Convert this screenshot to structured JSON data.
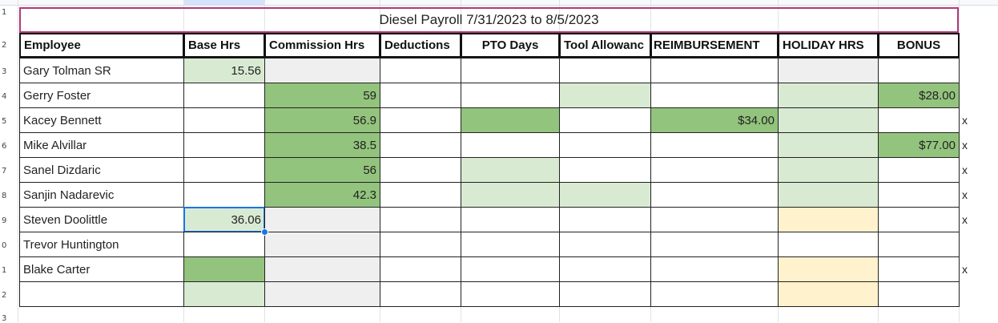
{
  "title": "Diesel Payroll 7/31/2023 to 8/5/2023",
  "row_numbers": [
    "1",
    "2",
    "3",
    "4",
    "5",
    "6",
    "7",
    "8",
    "9",
    "0",
    "1",
    "2",
    "3"
  ],
  "headers": [
    "Employee",
    "Base Hrs",
    "Commission Hrs",
    "Deductions",
    "PTO Days",
    "Tool Allowanc",
    "REIMBURSEMENT",
    "HOLIDAY HRS",
    "BONUS"
  ],
  "colors": {
    "green_dark": "#93c47d",
    "green_light": "#d9ead3",
    "gray_light": "#efefef",
    "yellow_light": "#fff2cc",
    "title_border": "#b03a7a",
    "selection": "#1a73e8"
  },
  "rows": [
    {
      "employee": "Gary Tolman SR",
      "base_hrs": "15.56",
      "commission_hrs": "",
      "reimbursement": "",
      "bonus": "",
      "mark": ""
    },
    {
      "employee": "Gerry Foster",
      "base_hrs": "",
      "commission_hrs": "59",
      "reimbursement": "",
      "bonus": "$28.00",
      "mark": ""
    },
    {
      "employee": "Kacey Bennett",
      "base_hrs": "",
      "commission_hrs": "56.9",
      "reimbursement": "$34.00",
      "bonus": "",
      "mark": "x"
    },
    {
      "employee": "Mike Alvillar",
      "base_hrs": "",
      "commission_hrs": "38.5",
      "reimbursement": "",
      "bonus": "$77.00",
      "mark": "x"
    },
    {
      "employee": "Sanel Dizdaric",
      "base_hrs": "",
      "commission_hrs": "56",
      "reimbursement": "",
      "bonus": "",
      "mark": "x"
    },
    {
      "employee": "Sanjin Nadarevic",
      "base_hrs": "",
      "commission_hrs": "42.3",
      "reimbursement": "",
      "bonus": "",
      "mark": "x"
    },
    {
      "employee": "Steven Doolittle",
      "base_hrs": "36.06",
      "commission_hrs": "",
      "reimbursement": "",
      "bonus": "",
      "mark": "x"
    },
    {
      "employee": "Trevor Huntington",
      "base_hrs": "",
      "commission_hrs": "",
      "reimbursement": "",
      "bonus": "",
      "mark": ""
    },
    {
      "employee": "Blake Carter",
      "base_hrs": "",
      "commission_hrs": "",
      "reimbursement": "",
      "bonus": "",
      "mark": "x"
    },
    {
      "employee": "",
      "base_hrs": "",
      "commission_hrs": "",
      "reimbursement": "",
      "bonus": "",
      "mark": ""
    }
  ]
}
